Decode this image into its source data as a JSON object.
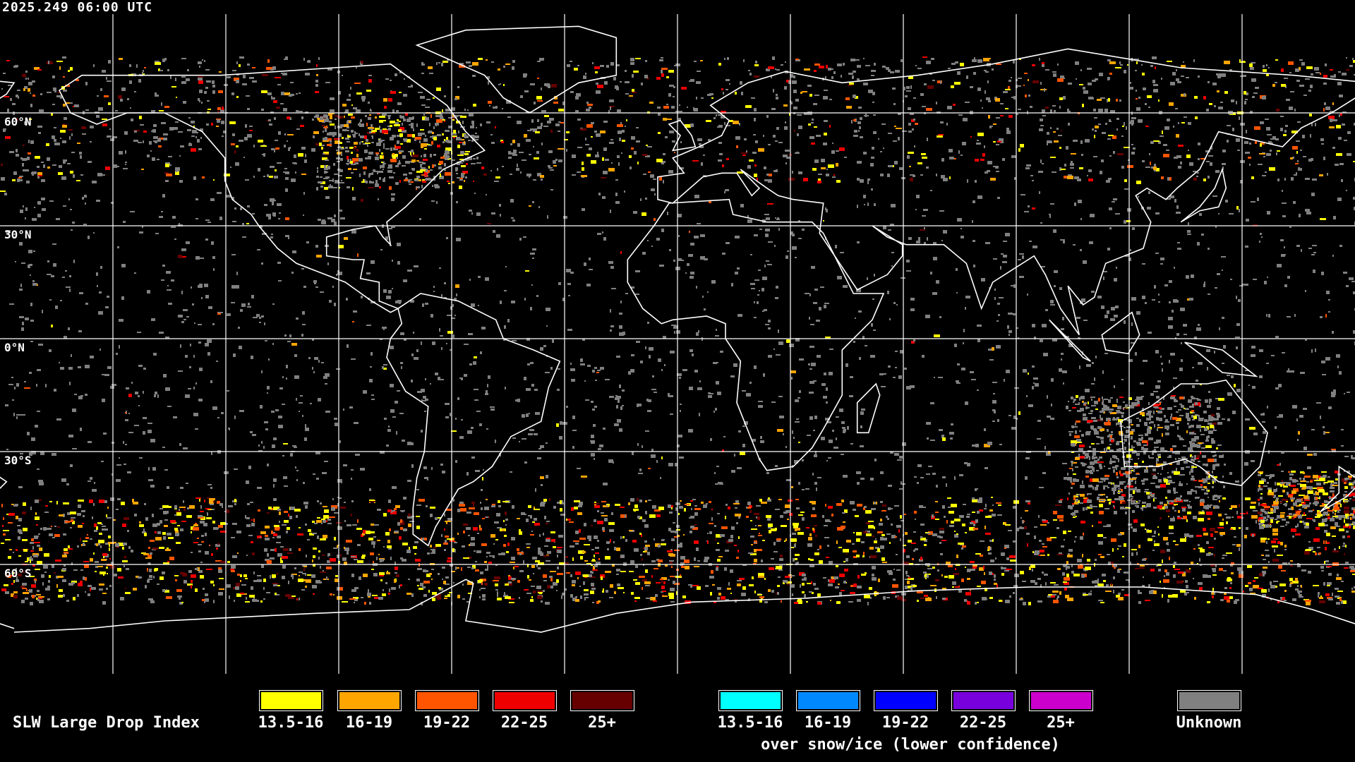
{
  "timestamp": "2025.249 06:00 UTC",
  "lat_labels": [
    "60°N",
    "30°N",
    "0°N",
    "30°S",
    "60°S"
  ],
  "legend": {
    "title": "SLW Large Drop Index",
    "main": [
      {
        "label": "13.5-16",
        "color": "#ffff00"
      },
      {
        "label": "16-19",
        "color": "#ffa500"
      },
      {
        "label": "19-22",
        "color": "#ff5500"
      },
      {
        "label": "22-25",
        "color": "#ee0000"
      },
      {
        "label": "25+",
        "color": "#660000"
      }
    ],
    "snow_ice": [
      {
        "label": "13.5-16",
        "color": "#00ffff"
      },
      {
        "label": "16-19",
        "color": "#0088ff"
      },
      {
        "label": "19-22",
        "color": "#0000ff"
      },
      {
        "label": "22-25",
        "color": "#7700dd"
      },
      {
        "label": "25+",
        "color": "#cc00cc"
      }
    ],
    "snow_ice_caption": "over snow/ice (lower confidence)",
    "unknown": {
      "label": "Unknown",
      "color": "#808080"
    }
  },
  "colors": {
    "background": "#000000",
    "coastline": "#ffffff",
    "grid": "#ffffff"
  }
}
